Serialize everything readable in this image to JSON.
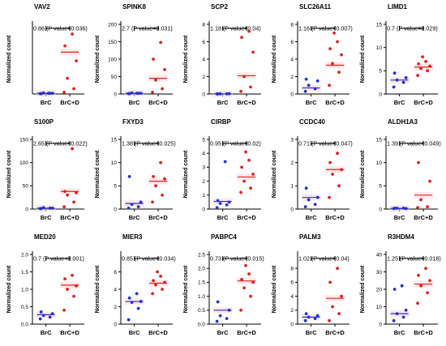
{
  "colors": {
    "brc": "#2233cc",
    "brcd": "#dd2222",
    "mean_bg": "#ffd6d6",
    "axis": "#000000"
  },
  "chart_data": [
    {
      "type": "scatter",
      "title": "VAV2",
      "ylabel": "Normalized count",
      "categories": [
        "BrC",
        "BrC+D"
      ],
      "ylim": [
        0,
        2.0
      ],
      "yticks": [],
      "annotation": "0.86 (P value=0.036)",
      "points_brc": [
        0.01,
        0.02,
        0.03,
        0.02,
        0.01,
        0.02
      ],
      "points_brcd": [
        0.05,
        0.15,
        0.45,
        0.95,
        1.38,
        1.72
      ],
      "means": [
        0.02,
        1.2
      ]
    },
    {
      "type": "scatter",
      "title": "SPINK8",
      "ylabel": "Normalized count",
      "categories": [
        "BrC",
        "BrC+D"
      ],
      "ylim": [
        0,
        200
      ],
      "yticks": [
        "0",
        "50",
        "100",
        "150",
        "200"
      ],
      "annotation": "2.7 (P value=0.031)",
      "points_brc": [
        1,
        2,
        3,
        2,
        1,
        2
      ],
      "points_brcd": [
        5,
        15,
        40,
        70,
        100,
        148
      ],
      "means": [
        2,
        45
      ]
    },
    {
      "type": "scatter",
      "title": "SCP2",
      "ylabel": "Normalized count",
      "categories": [
        "BrC",
        "BrC+D"
      ],
      "ylim": [
        0,
        8
      ],
      "yticks": [
        "0",
        "2",
        "4",
        "6",
        "8"
      ],
      "annotation": "1.18 (P value=0.04)",
      "points_brc": [
        0.01,
        0.02,
        0.02,
        0.03,
        0.01
      ],
      "points_brcd": [
        0.3,
        0.8,
        2.0,
        4.8,
        6.5,
        7.2
      ],
      "means": [
        0.02,
        2.1
      ]
    },
    {
      "type": "scatter",
      "title": "SLC26A11",
      "ylabel": "Normalized count",
      "categories": [
        "BrC",
        "BrC+D"
      ],
      "ylim": [
        0,
        8
      ],
      "yticks": [
        "0",
        "2",
        "4",
        "6",
        "8"
      ],
      "annotation": "1.16 (P value=0.007)",
      "points_brc": [
        0.3,
        0.6,
        1.0,
        1.5,
        1.7
      ],
      "points_brcd": [
        1.0,
        2.5,
        3.5,
        4.5,
        5.2,
        6.0,
        7.0
      ],
      "means": [
        0.7,
        3.3
      ]
    },
    {
      "type": "scatter",
      "title": "LIMD1",
      "ylabel": "Normalized count",
      "categories": [
        "BrC",
        "BrC+D"
      ],
      "ylim": [
        0,
        15
      ],
      "yticks": [
        "0",
        "5",
        "10",
        "15"
      ],
      "annotation": "0.7 (P value=0.029)",
      "points_brc": [
        1.5,
        2.5,
        3.0,
        3.5,
        4.5
      ],
      "points_brcd": [
        4.0,
        5.0,
        5.5,
        6.0,
        6.5,
        7.0,
        8.0
      ],
      "means": [
        3.0,
        5.8
      ]
    },
    {
      "type": "scatter",
      "title": "S100P",
      "ylabel": "Normalized count",
      "categories": [
        "BrC",
        "BrC+D"
      ],
      "ylim": [
        0,
        150
      ],
      "yticks": [
        "0",
        "50",
        "100",
        "150"
      ],
      "annotation": "2.65 (P value=0.022)",
      "points_brc": [
        1,
        2,
        3,
        2,
        1
      ],
      "points_brcd": [
        5,
        15,
        30,
        35,
        38,
        130
      ],
      "means": [
        2,
        38
      ]
    },
    {
      "type": "scatter",
      "title": "FXYD3",
      "ylabel": "Normalized count",
      "categories": [
        "BrC",
        "BrC+D"
      ],
      "ylim": [
        0,
        15
      ],
      "yticks": [
        "0",
        "5",
        "10",
        "15"
      ],
      "annotation": "1.38 (P value=0.025)",
      "points_brc": [
        0.2,
        0.5,
        1.0,
        1.5,
        7.0
      ],
      "points_brcd": [
        1.5,
        3.0,
        5.0,
        6.5,
        7.0,
        10.0
      ],
      "means": [
        1.2,
        6.0
      ]
    },
    {
      "type": "scatter",
      "title": "CIRBP",
      "ylabel": "Normalized count",
      "categories": [
        "BrC",
        "BrC+D"
      ],
      "ylim": [
        0,
        5
      ],
      "yticks": [
        "0",
        "1",
        "2",
        "3",
        "4",
        "5"
      ],
      "annotation": "0.95 (P value=0.02)",
      "points_brc": [
        0.1,
        0.3,
        0.4,
        0.5,
        0.6,
        3.4
      ],
      "points_brcd": [
        1.2,
        1.5,
        2.0,
        2.5,
        3.0,
        3.5,
        4.1
      ],
      "means": [
        0.55,
        2.3
      ]
    },
    {
      "type": "scatter",
      "title": "CCDC40",
      "ylabel": "Normalized count",
      "categories": [
        "BrC",
        "BrC+D"
      ],
      "ylim": [
        0,
        3
      ],
      "yticks": [
        "0",
        "1",
        "2",
        "3"
      ],
      "annotation": "0.71 (P value=0.047)",
      "points_brc": [
        0.1,
        0.2,
        0.4,
        0.5,
        0.9
      ],
      "points_brcd": [
        0.5,
        1.0,
        1.5,
        1.7,
        2.0,
        2.4
      ],
      "means": [
        0.5,
        1.7
      ]
    },
    {
      "type": "scatter",
      "title": "ALDH1A3",
      "ylabel": "Normalized count",
      "categories": [
        "BrC",
        "BrC+D"
      ],
      "ylim": [
        0,
        15
      ],
      "yticks": [
        "0",
        "5",
        "10",
        "15"
      ],
      "annotation": "1.39 (P value=0.049)",
      "points_brc": [
        0.1,
        0.2,
        0.2,
        0.1,
        0.2
      ],
      "points_brcd": [
        0.3,
        0.5,
        2.0,
        6.0,
        10.0
      ],
      "means": [
        0.15,
        3.0
      ]
    },
    {
      "type": "scatter",
      "title": "MED20",
      "ylabel": "Normalized count",
      "categories": [
        "BrC",
        "BrC+D"
      ],
      "ylim": [
        0,
        2.0
      ],
      "yticks": [
        "0.0",
        "0.5",
        "1.0",
        "1.5",
        "2.0"
      ],
      "annotation": "0.7 (P value<0.001)",
      "points_brc": [
        0.15,
        0.2,
        0.25,
        0.3,
        0.35
      ],
      "points_brcd": [
        0.4,
        0.8,
        1.0,
        1.1,
        1.3,
        1.4
      ],
      "means": [
        0.27,
        1.12
      ]
    },
    {
      "type": "scatter",
      "title": "MIER3",
      "ylabel": "Normalized count",
      "categories": [
        "BrC",
        "BrC+D"
      ],
      "ylim": [
        0,
        8
      ],
      "yticks": [
        "0",
        "2",
        "4",
        "6"
      ],
      "annotation": "0.85 (P value=0.034)",
      "points_brc": [
        0.5,
        1.8,
        2.5,
        2.6,
        3.0,
        3.5
      ],
      "points_brcd": [
        3.5,
        4.0,
        4.5,
        4.8,
        5.0,
        5.5,
        6.0
      ],
      "means": [
        2.6,
        4.7
      ]
    },
    {
      "type": "scatter",
      "title": "PABPC4",
      "ylabel": "Normalized count",
      "categories": [
        "BrC",
        "BrC+D"
      ],
      "ylim": [
        0,
        2.5
      ],
      "yticks": [
        "0.0",
        "0.5",
        "1.0",
        "1.5",
        "2.0",
        "2.5"
      ],
      "annotation": "0.73 (P value=0.015)",
      "points_brc": [
        0.1,
        0.2,
        0.3,
        0.5,
        0.8
      ],
      "points_brcd": [
        0.5,
        1.0,
        1.3,
        1.5,
        1.6,
        1.8,
        2.1
      ],
      "means": [
        0.5,
        1.55
      ]
    },
    {
      "type": "scatter",
      "title": "PALM3",
      "ylabel": "Normalized count",
      "categories": [
        "BrC",
        "BrC+D"
      ],
      "ylim": [
        0,
        10
      ],
      "yticks": [
        "0",
        "2",
        "4",
        "6",
        "8"
      ],
      "annotation": "1.02 (P value=0.04)",
      "points_brc": [
        0.5,
        0.8,
        1.0,
        1.2,
        1.5
      ],
      "points_brcd": [
        0.5,
        1.5,
        2.5,
        4.0,
        6.0,
        8.0
      ],
      "means": [
        1.0,
        3.7
      ]
    },
    {
      "type": "scatter",
      "title": "R3HDM4",
      "ylabel": "Normalized count",
      "categories": [
        "BrC",
        "BrC+D"
      ],
      "ylim": [
        0,
        40
      ],
      "yticks": [
        "0",
        "10",
        "20",
        "30",
        "40"
      ],
      "annotation": "1.25 (P value=0.018)",
      "points_brc": [
        2,
        4,
        6,
        8,
        20,
        22
      ],
      "points_brcd": [
        12,
        18,
        22,
        25,
        28,
        32
      ],
      "means": [
        6,
        23
      ]
    }
  ]
}
